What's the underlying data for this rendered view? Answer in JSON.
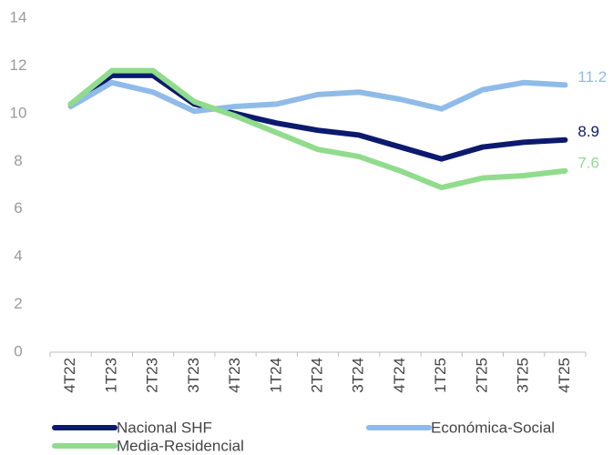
{
  "chart_data": {
    "type": "line",
    "categories": [
      "4T22",
      "1T23",
      "2T23",
      "3T23",
      "4T23",
      "1T24",
      "2T24",
      "3T24",
      "4T24",
      "1T25",
      "2T25",
      "3T25",
      "4T25"
    ],
    "series": [
      {
        "name": "Nacional SHF",
        "color": "#0b1a6e",
        "values": [
          10.4,
          11.6,
          11.6,
          10.4,
          10.0,
          9.6,
          9.3,
          9.1,
          8.6,
          8.1,
          8.6,
          8.8,
          8.9
        ]
      },
      {
        "name": "Económica-Social",
        "color": "#8fbbe9",
        "values": [
          10.3,
          11.3,
          10.9,
          10.1,
          10.3,
          10.4,
          10.8,
          10.9,
          10.6,
          10.2,
          11.0,
          11.3,
          11.2
        ]
      },
      {
        "name": "Media-Residencial",
        "color": "#90dc8c",
        "values": [
          10.4,
          11.8,
          11.8,
          10.5,
          9.9,
          9.2,
          8.5,
          8.2,
          7.6,
          6.9,
          7.3,
          7.4,
          7.6
        ]
      }
    ],
    "ylim": [
      0,
      14
    ],
    "yticks": [
      0,
      2,
      4,
      6,
      8,
      10,
      12,
      14
    ],
    "grid": false,
    "legend": "bottom"
  }
}
